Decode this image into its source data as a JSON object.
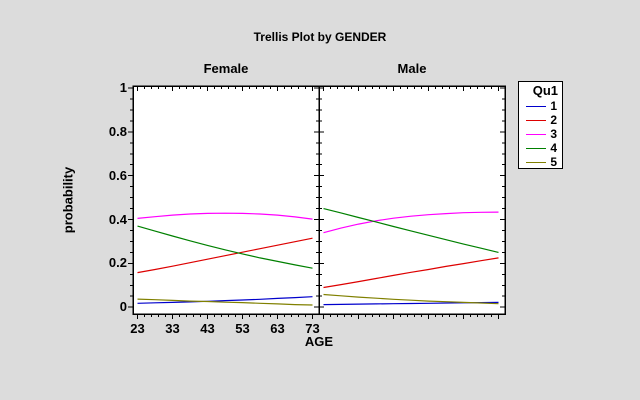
{
  "title": "Trellis Plot by GENDER",
  "colors": {
    "background": "#dcdcdc",
    "panel_background": "#ffffff",
    "frame": "#000000",
    "text": "#000000",
    "series": {
      "1": "#0000cc",
      "2": "#dd0000",
      "3": "#ff00ff",
      "4": "#008000",
      "5": "#808000"
    }
  },
  "y_axis": {
    "label": "probability",
    "tick_labels": [
      "1",
      "0.8",
      "0.6",
      "0.4",
      "0.2",
      "0"
    ],
    "tick_values": [
      1,
      0.8,
      0.6,
      0.4,
      0.2,
      0
    ]
  },
  "x_axis": {
    "label": "AGE",
    "tick_labels": [
      "23",
      "33",
      "43",
      "53",
      "63",
      "73"
    ],
    "tick_values": [
      23,
      33,
      43,
      53,
      63,
      73
    ]
  },
  "legend": {
    "title": "Qu1",
    "items": [
      {
        "label": "1",
        "color": "#0000cc"
      },
      {
        "label": "2",
        "color": "#dd0000"
      },
      {
        "label": "3",
        "color": "#ff00ff"
      },
      {
        "label": "4",
        "color": "#008000"
      },
      {
        "label": "5",
        "color": "#808000"
      }
    ]
  },
  "chart_data": {
    "type": "line",
    "title": "Trellis Plot by GENDER",
    "trellis_by": "GENDER",
    "xlabel": "AGE",
    "ylabel": "probability",
    "xlim": [
      23,
      73
    ],
    "ylim": [
      0,
      1
    ],
    "x": [
      23,
      28,
      33,
      38,
      43,
      48,
      53,
      58,
      63,
      68,
      73
    ],
    "panels": [
      {
        "title": "Female",
        "series": [
          {
            "name": "1",
            "color": "#0000cc",
            "values": [
              0.018,
              0.02,
              0.022,
              0.024,
              0.027,
              0.03,
              0.033,
              0.036,
              0.04,
              0.044,
              0.048
            ]
          },
          {
            "name": "2",
            "color": "#dd0000",
            "values": [
              0.158,
              0.172,
              0.187,
              0.203,
              0.219,
              0.235,
              0.251,
              0.267,
              0.283,
              0.299,
              0.315
            ]
          },
          {
            "name": "3",
            "color": "#ff00ff",
            "values": [
              0.405,
              0.413,
              0.42,
              0.425,
              0.428,
              0.429,
              0.428,
              0.425,
              0.42,
              0.412,
              0.402
            ]
          },
          {
            "name": "4",
            "color": "#008000",
            "values": [
              0.37,
              0.347,
              0.325,
              0.303,
              0.282,
              0.262,
              0.243,
              0.225,
              0.209,
              0.193,
              0.178
            ]
          },
          {
            "name": "5",
            "color": "#808000",
            "values": [
              0.037,
              0.034,
              0.031,
              0.028,
              0.026,
              0.023,
              0.021,
              0.018,
              0.015,
              0.012,
              0.01
            ]
          }
        ]
      },
      {
        "title": "Male",
        "series": [
          {
            "name": "1",
            "color": "#0000cc",
            "values": [
              0.012,
              0.013,
              0.014,
              0.015,
              0.016,
              0.017,
              0.018,
              0.019,
              0.02,
              0.021,
              0.022
            ]
          },
          {
            "name": "2",
            "color": "#dd0000",
            "values": [
              0.09,
              0.103,
              0.117,
              0.131,
              0.145,
              0.159,
              0.172,
              0.186,
              0.199,
              0.212,
              0.225
            ]
          },
          {
            "name": "3",
            "color": "#ff00ff",
            "values": [
              0.34,
              0.361,
              0.379,
              0.394,
              0.406,
              0.415,
              0.422,
              0.427,
              0.431,
              0.433,
              0.434
            ]
          },
          {
            "name": "4",
            "color": "#008000",
            "values": [
              0.45,
              0.43,
              0.409,
              0.389,
              0.368,
              0.348,
              0.328,
              0.308,
              0.288,
              0.269,
              0.25
            ]
          },
          {
            "name": "5",
            "color": "#808000",
            "values": [
              0.058,
              0.052,
              0.046,
              0.041,
              0.036,
              0.032,
              0.028,
              0.025,
              0.022,
              0.019,
              0.016
            ]
          }
        ]
      }
    ],
    "legend_title": "Qu1",
    "legend_position": "right",
    "grid": false
  }
}
